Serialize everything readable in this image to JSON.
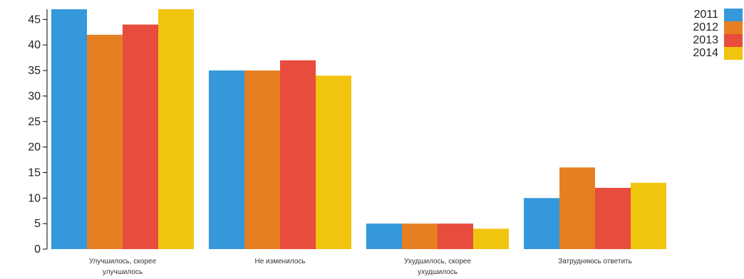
{
  "chart_data": {
    "type": "bar",
    "title": "",
    "xlabel": "",
    "ylabel": "",
    "ylim": [
      0,
      47
    ],
    "yticks": [
      0,
      5,
      10,
      15,
      20,
      25,
      30,
      35,
      40,
      45
    ],
    "grid": false,
    "legend_position": "top-right",
    "categories": [
      [
        "Улучшилось, скорее",
        "улучшилось"
      ],
      [
        "Не изменилось"
      ],
      [
        "Ухудшилось, скорее",
        "ухудшилось"
      ],
      [
        "Затрудняюсь ответить"
      ]
    ],
    "series": [
      {
        "name": "2011",
        "color": "#3498db",
        "values": [
          47,
          35,
          5,
          10
        ]
      },
      {
        "name": "2012",
        "color": "#e67e22",
        "values": [
          42,
          35,
          5,
          16
        ]
      },
      {
        "name": "2013",
        "color": "#e74c3c",
        "values": [
          44,
          37,
          5,
          12
        ]
      },
      {
        "name": "2014",
        "color": "#f1c40f",
        "values": [
          47,
          34,
          4,
          13
        ]
      }
    ]
  }
}
